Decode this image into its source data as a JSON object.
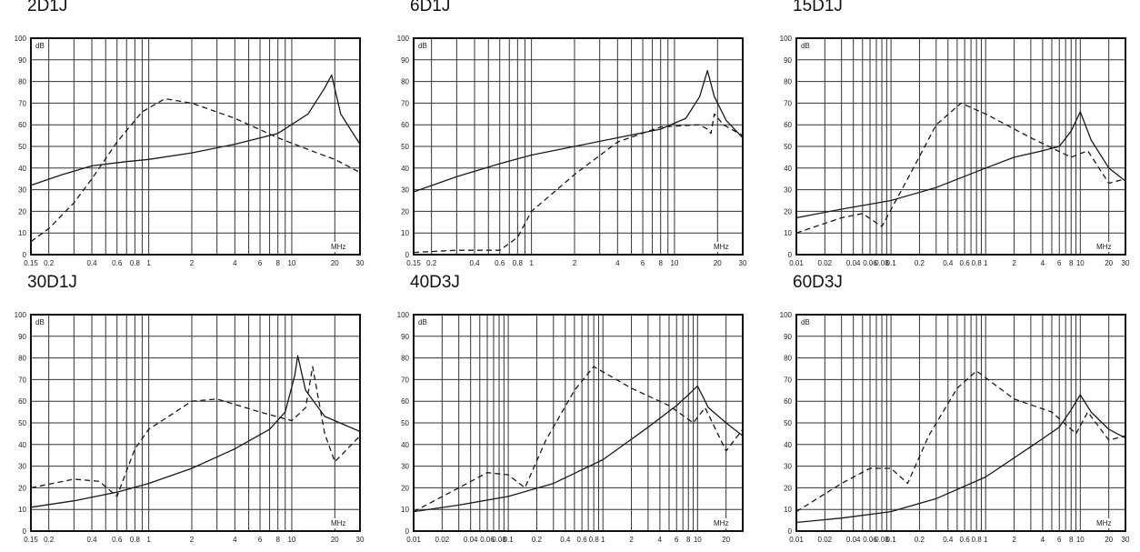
{
  "chart_data": [
    {
      "type": "line",
      "title": "2D1J",
      "xscale": "log",
      "xlim": [
        0.15,
        30
      ],
      "ylim": [
        0,
        100
      ],
      "yticks": [
        0,
        10,
        20,
        30,
        40,
        50,
        60,
        70,
        80,
        90,
        100
      ],
      "yunit": "dB",
      "xunit": "MHz",
      "xtick_labels": [
        {
          "v": 0.15,
          "t": "0.15"
        },
        {
          "v": 0.2,
          "t": "0.2"
        },
        {
          "v": 0.4,
          "t": "0.4"
        },
        {
          "v": 0.6,
          "t": "0.6"
        },
        {
          "v": 0.8,
          "t": "0.8"
        },
        {
          "v": 1,
          "t": "1"
        },
        {
          "v": 2,
          "t": "2"
        },
        {
          "v": 4,
          "t": "4"
        },
        {
          "v": 6,
          "t": "6"
        },
        {
          "v": 8,
          "t": "8"
        },
        {
          "v": 10,
          "t": "10"
        },
        {
          "v": 20,
          "t": "20"
        },
        {
          "v": 30,
          "t": "30"
        }
      ],
      "series": [
        {
          "style": "solid",
          "points": [
            [
              0.15,
              32
            ],
            [
              0.25,
              37
            ],
            [
              0.4,
              41
            ],
            [
              0.7,
              43
            ],
            [
              1,
              44
            ],
            [
              2,
              47
            ],
            [
              4,
              51
            ],
            [
              8,
              56
            ],
            [
              13,
              65
            ],
            [
              17,
              77
            ],
            [
              19,
              83
            ],
            [
              22,
              65
            ],
            [
              30,
              51
            ]
          ]
        },
        {
          "style": "dashed",
          "points": [
            [
              0.15,
              6
            ],
            [
              0.2,
              12
            ],
            [
              0.3,
              24
            ],
            [
              0.4,
              35
            ],
            [
              0.6,
              52
            ],
            [
              0.9,
              66
            ],
            [
              1.3,
              72
            ],
            [
              2,
              70
            ],
            [
              4,
              63
            ],
            [
              8,
              54
            ],
            [
              15,
              47
            ],
            [
              20,
              44
            ],
            [
              30,
              38
            ]
          ]
        }
      ]
    },
    {
      "type": "line",
      "title": "6D1J",
      "xscale": "log",
      "xlim": [
        0.15,
        30
      ],
      "ylim": [
        0,
        100
      ],
      "yticks": [
        0,
        10,
        20,
        30,
        40,
        50,
        60,
        70,
        80,
        90,
        100
      ],
      "yunit": "dB",
      "xunit": "MHz",
      "xtick_labels": [
        {
          "v": 0.15,
          "t": "0.15"
        },
        {
          "v": 0.2,
          "t": "0.2"
        },
        {
          "v": 0.4,
          "t": "0.4"
        },
        {
          "v": 0.6,
          "t": "0.6"
        },
        {
          "v": 0.8,
          "t": "0.8"
        },
        {
          "v": 1,
          "t": "1"
        },
        {
          "v": 2,
          "t": "2"
        },
        {
          "v": 4,
          "t": "4"
        },
        {
          "v": 6,
          "t": "6"
        },
        {
          "v": 8,
          "t": "8"
        },
        {
          "v": 10,
          "t": "10"
        },
        {
          "v": 20,
          "t": "20"
        },
        {
          "v": 30,
          "t": "30"
        }
      ],
      "series": [
        {
          "style": "solid",
          "points": [
            [
              0.15,
              29
            ],
            [
              0.3,
              36
            ],
            [
              0.6,
              42
            ],
            [
              1,
              46
            ],
            [
              2,
              50
            ],
            [
              4,
              54
            ],
            [
              8,
              58
            ],
            [
              12,
              63
            ],
            [
              15,
              73
            ],
            [
              17,
              85
            ],
            [
              19,
              73
            ],
            [
              23,
              62
            ],
            [
              30,
              54
            ]
          ]
        },
        {
          "style": "dashed",
          "points": [
            [
              0.15,
              1
            ],
            [
              0.3,
              2
            ],
            [
              0.6,
              2
            ],
            [
              0.8,
              8
            ],
            [
              1,
              20
            ],
            [
              2,
              37
            ],
            [
              4,
              52
            ],
            [
              8,
              59
            ],
            [
              15,
              60
            ],
            [
              17,
              58
            ],
            [
              18,
              56
            ],
            [
              19,
              65
            ],
            [
              22,
              60
            ],
            [
              30,
              55
            ]
          ]
        }
      ]
    },
    {
      "type": "line",
      "title": "15D1J",
      "xscale": "log",
      "xlim": [
        0.01,
        30
      ],
      "ylim": [
        0,
        100
      ],
      "yticks": [
        0,
        10,
        20,
        30,
        40,
        50,
        60,
        70,
        80,
        90,
        100
      ],
      "yunit": "dB",
      "xunit": "MHz",
      "xtick_labels": [
        {
          "v": 0.01,
          "t": "0.01"
        },
        {
          "v": 0.02,
          "t": "0.02"
        },
        {
          "v": 0.04,
          "t": "0.04"
        },
        {
          "v": 0.06,
          "t": "0.06"
        },
        {
          "v": 0.08,
          "t": "0.08"
        },
        {
          "v": 0.1,
          "t": "0.1"
        },
        {
          "v": 0.2,
          "t": "0.2"
        },
        {
          "v": 0.4,
          "t": "0.4"
        },
        {
          "v": 0.6,
          "t": "0.6"
        },
        {
          "v": 0.8,
          "t": "0.8"
        },
        {
          "v": 1,
          "t": "1"
        },
        {
          "v": 2,
          "t": "2"
        },
        {
          "v": 4,
          "t": "4"
        },
        {
          "v": 6,
          "t": "6"
        },
        {
          "v": 8,
          "t": "8"
        },
        {
          "v": 10,
          "t": "10"
        },
        {
          "v": 20,
          "t": "20"
        },
        {
          "v": 30,
          "t": "30"
        }
      ],
      "series": [
        {
          "style": "solid",
          "points": [
            [
              0.01,
              17
            ],
            [
              0.03,
              21
            ],
            [
              0.1,
              25
            ],
            [
              0.3,
              31
            ],
            [
              1,
              40
            ],
            [
              2,
              45
            ],
            [
              4,
              48
            ],
            [
              6,
              50
            ],
            [
              8,
              57
            ],
            [
              10,
              66
            ],
            [
              13,
              53
            ],
            [
              20,
              40
            ],
            [
              30,
              34
            ]
          ]
        },
        {
          "style": "dashed",
          "points": [
            [
              0.01,
              10
            ],
            [
              0.03,
              17
            ],
            [
              0.05,
              19
            ],
            [
              0.08,
              13
            ],
            [
              0.15,
              35
            ],
            [
              0.3,
              60
            ],
            [
              0.55,
              70
            ],
            [
              1,
              65
            ],
            [
              3,
              54
            ],
            [
              8,
              45
            ],
            [
              12,
              48
            ],
            [
              20,
              33
            ],
            [
              30,
              35
            ]
          ]
        }
      ]
    },
    {
      "type": "line",
      "title": "30D1J",
      "xscale": "log",
      "xlim": [
        0.15,
        30
      ],
      "ylim": [
        0,
        100
      ],
      "yticks": [
        0,
        10,
        20,
        30,
        40,
        50,
        60,
        70,
        80,
        90,
        100
      ],
      "yunit": "dB",
      "xunit": "MHz",
      "xtick_labels": [
        {
          "v": 0.15,
          "t": "0.15"
        },
        {
          "v": 0.2,
          "t": "0.2"
        },
        {
          "v": 0.4,
          "t": "0.4"
        },
        {
          "v": 0.6,
          "t": "0.6"
        },
        {
          "v": 0.8,
          "t": "0.8"
        },
        {
          "v": 1,
          "t": "1"
        },
        {
          "v": 2,
          "t": "2"
        },
        {
          "v": 4,
          "t": "4"
        },
        {
          "v": 6,
          "t": "6"
        },
        {
          "v": 8,
          "t": "8"
        },
        {
          "v": 10,
          "t": "10"
        },
        {
          "v": 20,
          "t": "20"
        },
        {
          "v": 30,
          "t": "30"
        }
      ],
      "series": [
        {
          "style": "solid",
          "points": [
            [
              0.15,
              11
            ],
            [
              0.3,
              14
            ],
            [
              0.6,
              18
            ],
            [
              1,
              22
            ],
            [
              2,
              29
            ],
            [
              4,
              38
            ],
            [
              7,
              47
            ],
            [
              9,
              55
            ],
            [
              10.5,
              72
            ],
            [
              11,
              81
            ],
            [
              12.5,
              65
            ],
            [
              17,
              53
            ],
            [
              30,
              46
            ]
          ]
        },
        {
          "style": "dashed",
          "points": [
            [
              0.15,
              20
            ],
            [
              0.3,
              24
            ],
            [
              0.45,
              23
            ],
            [
              0.6,
              16
            ],
            [
              0.8,
              38
            ],
            [
              1,
              47
            ],
            [
              2,
              60
            ],
            [
              3,
              61
            ],
            [
              6,
              55
            ],
            [
              10,
              51
            ],
            [
              12.5,
              57
            ],
            [
              14,
              76
            ],
            [
              17,
              45
            ],
            [
              20,
              32
            ],
            [
              30,
              44
            ]
          ]
        }
      ]
    },
    {
      "type": "line",
      "title": "40D3J",
      "xscale": "log",
      "xlim": [
        0.01,
        30
      ],
      "ylim": [
        0,
        100
      ],
      "yticks": [
        0,
        10,
        20,
        30,
        40,
        50,
        60,
        70,
        80,
        90,
        100
      ],
      "yunit": "dB",
      "xunit": "MHz",
      "xtick_labels": [
        {
          "v": 0.01,
          "t": "0.01"
        },
        {
          "v": 0.02,
          "t": "0.02"
        },
        {
          "v": 0.04,
          "t": "0.04"
        },
        {
          "v": 0.06,
          "t": "0.06"
        },
        {
          "v": 0.08,
          "t": "0.08"
        },
        {
          "v": 0.1,
          "t": "0.1"
        },
        {
          "v": 0.2,
          "t": "0.2"
        },
        {
          "v": 0.4,
          "t": "0.4"
        },
        {
          "v": 0.6,
          "t": "0.6"
        },
        {
          "v": 0.8,
          "t": "0.8"
        },
        {
          "v": 1,
          "t": "1"
        },
        {
          "v": 2,
          "t": "2"
        },
        {
          "v": 4,
          "t": "4"
        },
        {
          "v": 6,
          "t": "6"
        },
        {
          "v": 8,
          "t": "8"
        },
        {
          "v": 10,
          "t": "10"
        },
        {
          "v": 20,
          "t": "20"
        }
      ],
      "series": [
        {
          "style": "solid",
          "points": [
            [
              0.01,
              9
            ],
            [
              0.03,
              12
            ],
            [
              0.1,
              16
            ],
            [
              0.3,
              22
            ],
            [
              1,
              33
            ],
            [
              3,
              48
            ],
            [
              6,
              58
            ],
            [
              8,
              63
            ],
            [
              10,
              67
            ],
            [
              13,
              57
            ],
            [
              20,
              50
            ],
            [
              30,
              44
            ]
          ]
        },
        {
          "style": "dashed",
          "points": [
            [
              0.01,
              9
            ],
            [
              0.03,
              20
            ],
            [
              0.06,
              27
            ],
            [
              0.1,
              26
            ],
            [
              0.15,
              20
            ],
            [
              0.25,
              42
            ],
            [
              0.5,
              65
            ],
            [
              0.8,
              76
            ],
            [
              2,
              66
            ],
            [
              5,
              58
            ],
            [
              9,
              50
            ],
            [
              12,
              57
            ],
            [
              20,
              37
            ],
            [
              30,
              47
            ]
          ]
        }
      ]
    },
    {
      "type": "line",
      "title": "60D3J",
      "xscale": "log",
      "xlim": [
        0.01,
        30
      ],
      "ylim": [
        0,
        100
      ],
      "yticks": [
        0,
        10,
        20,
        30,
        40,
        50,
        60,
        70,
        80,
        90,
        100
      ],
      "yunit": "dB",
      "xunit": "MHz",
      "xtick_labels": [
        {
          "v": 0.01,
          "t": "0.01"
        },
        {
          "v": 0.02,
          "t": "0.02"
        },
        {
          "v": 0.04,
          "t": "0.04"
        },
        {
          "v": 0.06,
          "t": "0.06"
        },
        {
          "v": 0.08,
          "t": "0.08"
        },
        {
          "v": 0.1,
          "t": "0.1"
        },
        {
          "v": 0.2,
          "t": "0.2"
        },
        {
          "v": 0.4,
          "t": "0.4"
        },
        {
          "v": 0.6,
          "t": "0.6"
        },
        {
          "v": 0.8,
          "t": "0.8"
        },
        {
          "v": 1,
          "t": "1"
        },
        {
          "v": 2,
          "t": "2"
        },
        {
          "v": 4,
          "t": "4"
        },
        {
          "v": 6,
          "t": "6"
        },
        {
          "v": 8,
          "t": "8"
        },
        {
          "v": 10,
          "t": "10"
        },
        {
          "v": 20,
          "t": "20"
        },
        {
          "v": 30,
          "t": "30"
        }
      ],
      "series": [
        {
          "style": "solid",
          "points": [
            [
              0.01,
              4
            ],
            [
              0.03,
              6
            ],
            [
              0.1,
              9
            ],
            [
              0.3,
              15
            ],
            [
              1,
              25
            ],
            [
              3,
              39
            ],
            [
              6,
              48
            ],
            [
              8,
              56
            ],
            [
              10,
              63
            ],
            [
              13,
              55
            ],
            [
              20,
              47
            ],
            [
              30,
              43
            ]
          ]
        },
        {
          "style": "dashed",
          "points": [
            [
              0.01,
              9
            ],
            [
              0.03,
              22
            ],
            [
              0.06,
              29
            ],
            [
              0.1,
              29
            ],
            [
              0.15,
              22
            ],
            [
              0.25,
              44
            ],
            [
              0.5,
              66
            ],
            [
              0.8,
              74
            ],
            [
              2,
              61
            ],
            [
              5,
              55
            ],
            [
              9,
              45
            ],
            [
              12,
              55
            ],
            [
              20,
              42
            ],
            [
              30,
              44
            ]
          ]
        }
      ]
    }
  ]
}
